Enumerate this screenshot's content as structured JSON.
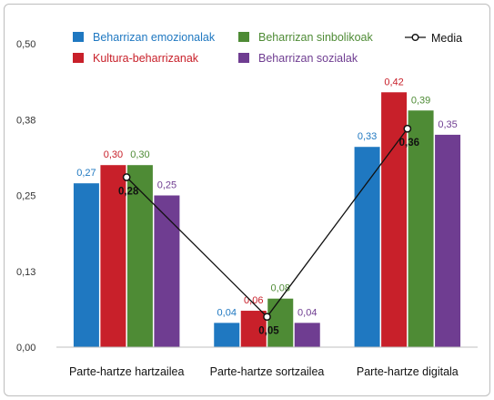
{
  "chart_data": {
    "type": "bar",
    "categories": [
      "Parte-hartze hartzailea",
      "Parte-hartze sortzailea",
      "Parte-hartze digitala"
    ],
    "series": [
      {
        "name": "Beharrizan emozionalak",
        "color": "#1f78c1",
        "values": [
          0.27,
          0.04,
          0.33
        ],
        "labels": [
          "0,27",
          "0,04",
          "0,33"
        ]
      },
      {
        "name": "Kultura-beharrizanak",
        "color": "#c8202a",
        "values": [
          0.3,
          0.06,
          0.42
        ],
        "labels": [
          "0,30",
          "0,06",
          "0,42"
        ]
      },
      {
        "name": "Beharrizan sinbolikoak",
        "color": "#4e8b35",
        "values": [
          0.3,
          0.08,
          0.39
        ],
        "labels": [
          "0,30",
          "0,08",
          "0,39"
        ]
      },
      {
        "name": "Beharrizan sozialak",
        "color": "#6f3d91",
        "values": [
          0.25,
          0.04,
          0.35
        ],
        "labels": [
          "0,25",
          "0,04",
          "0,35"
        ]
      }
    ],
    "line": {
      "name": "Media",
      "values": [
        0.28,
        0.05,
        0.36
      ],
      "labels": [
        "0,28",
        "0,05",
        "0,36"
      ]
    },
    "ylim": [
      0,
      0.5
    ],
    "yticks": [
      0.0,
      0.125,
      0.25,
      0.375,
      0.5
    ],
    "ytick_labels": [
      "0,00",
      "0,13",
      "0,25",
      "0,38",
      "0,50"
    ],
    "grid": false,
    "legend_position": "top"
  }
}
